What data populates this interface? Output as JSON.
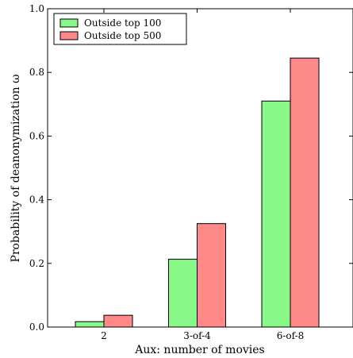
{
  "chart_data": {
    "type": "bar",
    "xlabel": "Aux: number of movies",
    "ylabel": "Probability of deanonymization ω",
    "ylim": [
      0,
      1.0
    ],
    "yticks": [
      0.0,
      0.2,
      0.4,
      0.6,
      0.8,
      1.0
    ],
    "ytick_labels": [
      "0.0",
      "0.2",
      "0.4",
      "0.6",
      "0.8",
      "1.0"
    ],
    "categories": [
      "2",
      "3-of-4",
      "6-of-8"
    ],
    "series": [
      {
        "name": "Outside top 100",
        "color": "#88f888",
        "values": [
          0.017,
          0.213,
          0.71
        ]
      },
      {
        "name": "Outside top 500",
        "color": "#ff8888",
        "values": [
          0.037,
          0.325,
          0.845
        ]
      }
    ],
    "legend_position": "top-left",
    "grid": false
  }
}
